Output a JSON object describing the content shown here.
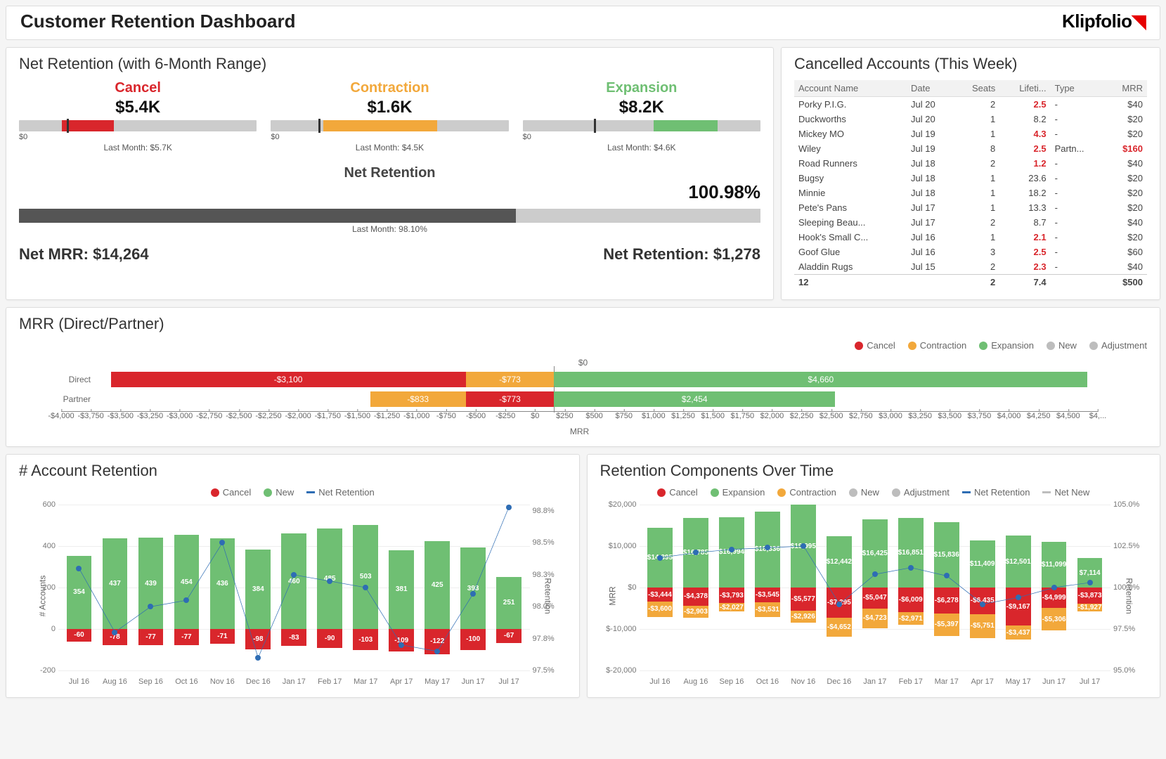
{
  "title": "Customer Retention Dashboard",
  "brand": "Klipfolio",
  "colors": {
    "cancel": "#d9262c",
    "contraction": "#f2a83b",
    "expansion": "#6fbf73",
    "gray": "#bdbdbd",
    "new": "#bdbdbd",
    "adjustment": "#bdbdbd",
    "line": "#2e6db4",
    "dark": "#555555",
    "zero_line": "#888888"
  },
  "net_retention": {
    "title": "Net Retention (with 6-Month Range)",
    "bullets": [
      {
        "label": "Cancel",
        "value": "$5.4K",
        "color": "#d9262c",
        "fill_pct": [
          18,
          40
        ],
        "marker_pct": 20,
        "last_month": "Last Month: $5.7K",
        "scale": [
          "$0",
          ""
        ]
      },
      {
        "label": "Contraction",
        "value": "$1.6K",
        "color": "#f2a83b",
        "fill_pct": [
          22,
          70
        ],
        "marker_pct": 20,
        "last_month": "Last Month: $4.5K",
        "scale": [
          "$0",
          ""
        ]
      },
      {
        "label": "Expansion",
        "value": "$8.2K",
        "color": "#6fbf73",
        "fill_pct": [
          55,
          82
        ],
        "marker_pct": 30,
        "last_month": "Last Month: $4.6K",
        "scale": [
          "$0",
          ""
        ]
      }
    ],
    "overall_label": "Net Retention",
    "overall_value": "100.98%",
    "overall_fill_pct": 67,
    "overall_last_month": "Last Month: 98.10%",
    "net_mrr": "Net MRR: $14,264",
    "net_ret": "Net Retention: $1,278"
  },
  "cancelled": {
    "title": "Cancelled Accounts (This Week)",
    "columns": [
      "Account Name",
      "Date",
      "Seats",
      "Lifeti...",
      "Type",
      "MRR"
    ],
    "rows": [
      {
        "name": "Porky P.I.G.",
        "date": "Jul 20",
        "seats": "2",
        "life": "2.5",
        "life_red": true,
        "type": "-",
        "mrr": "$40"
      },
      {
        "name": "Duckworths",
        "date": "Jul 20",
        "seats": "1",
        "life": "8.2",
        "life_red": false,
        "type": "-",
        "mrr": "$20"
      },
      {
        "name": "Mickey MO",
        "date": "Jul 19",
        "seats": "1",
        "life": "4.3",
        "life_red": true,
        "type": "-",
        "mrr": "$20"
      },
      {
        "name": "Wiley",
        "date": "Jul 19",
        "seats": "8",
        "life": "2.5",
        "life_red": true,
        "type": "Partn...",
        "mrr": "$160",
        "mrr_red": true
      },
      {
        "name": "Road Runners",
        "date": "Jul 18",
        "seats": "2",
        "life": "1.2",
        "life_red": true,
        "type": "-",
        "mrr": "$40"
      },
      {
        "name": "Bugsy",
        "date": "Jul 18",
        "seats": "1",
        "life": "23.6",
        "life_red": false,
        "type": "-",
        "mrr": "$20"
      },
      {
        "name": "Minnie",
        "date": "Jul 18",
        "seats": "1",
        "life": "18.2",
        "life_red": false,
        "type": "-",
        "mrr": "$20"
      },
      {
        "name": "Pete's Pans",
        "date": "Jul 17",
        "seats": "1",
        "life": "13.3",
        "life_red": false,
        "type": "-",
        "mrr": "$20"
      },
      {
        "name": "Sleeping Beau...",
        "date": "Jul 17",
        "seats": "2",
        "life": "8.7",
        "life_red": false,
        "type": "-",
        "mrr": "$40"
      },
      {
        "name": "Hook's Small C...",
        "date": "Jul 16",
        "seats": "1",
        "life": "2.1",
        "life_red": true,
        "type": "-",
        "mrr": "$20"
      },
      {
        "name": "Goof Glue",
        "date": "Jul 16",
        "seats": "3",
        "life": "2.5",
        "life_red": true,
        "type": "-",
        "mrr": "$60"
      },
      {
        "name": "Aladdin Rugs",
        "date": "Jul 15",
        "seats": "2",
        "life": "2.3",
        "life_red": true,
        "type": "-",
        "mrr": "$40"
      }
    ],
    "total": {
      "name": "12",
      "seats": "2",
      "life": "7.4",
      "mrr": "$500"
    }
  },
  "mrr_bar": {
    "title": "MRR (Direct/Partner)",
    "legend": [
      "Cancel",
      "Contraction",
      "Expansion",
      "New",
      "Adjustment"
    ],
    "xmin": -4000,
    "xmax": 4750,
    "zero_label": "$0",
    "ticks": [
      "-$4,000",
      "-$3,750",
      "-$3,500",
      "-$3,250",
      "-$3,000",
      "-$2,750",
      "-$2,500",
      "-$2,250",
      "-$2,000",
      "-$1,750",
      "-$1,500",
      "-$1,250",
      "-$1,000",
      "-$750",
      "-$500",
      "-$250",
      "$0",
      "$250",
      "$500",
      "$750",
      "$1,000",
      "$1,250",
      "$1,500",
      "$1,750",
      "$2,000",
      "$2,250",
      "$2,500",
      "$2,750",
      "$3,000",
      "$3,250",
      "$3,500",
      "$3,750",
      "$4,000",
      "$4,250",
      "$4,500",
      "$4,..."
    ],
    "tick_values": [
      -4000,
      -3750,
      -3500,
      -3250,
      -3000,
      -2750,
      -2500,
      -2250,
      -2000,
      -1750,
      -1500,
      -1250,
      -1000,
      -750,
      -500,
      -250,
      0,
      250,
      500,
      750,
      1000,
      1250,
      1500,
      1750,
      2000,
      2250,
      2500,
      2750,
      3000,
      3250,
      3500,
      3750,
      4000,
      4250,
      4500,
      4750
    ],
    "series": [
      {
        "label": "Direct",
        "segments": [
          {
            "from": -3873,
            "to": -773,
            "color": "#d9262c",
            "text": "-$3,100"
          },
          {
            "from": -773,
            "to": 0,
            "color": "#f2a83b",
            "text": "-$773"
          },
          {
            "from": 0,
            "to": 4660,
            "color": "#6fbf73",
            "text": "$4,660"
          }
        ]
      },
      {
        "label": "Partner",
        "segments": [
          {
            "from": -1606,
            "to": -773,
            "color": "#f2a83b",
            "text": "-$833"
          },
          {
            "from": -773,
            "to": 0,
            "color": "#d9262c",
            "text": "-$773"
          },
          {
            "from": 0,
            "to": 2454,
            "color": "#6fbf73",
            "text": "$2,454"
          }
        ]
      }
    ],
    "axis_title": "MRR"
  },
  "account_ret": {
    "title": "# Account Retention",
    "legend": [
      "Cancel",
      "New",
      "Net Retention"
    ],
    "y_left": {
      "min": -200,
      "max": 600,
      "step": 200,
      "title": "# Accounts"
    },
    "y_right": {
      "min": 97.5,
      "max": 98.8,
      "step": 0.25,
      "title": "Retention"
    },
    "months": [
      "Jul 16",
      "Aug 16",
      "Sep 16",
      "Oct 16",
      "Nov 16",
      "Dec 16",
      "Jan 17",
      "Feb 17",
      "Mar 17",
      "Apr 17",
      "May 17",
      "Jun 17",
      "Jul 17"
    ],
    "new": [
      354,
      437,
      439,
      454,
      436,
      384,
      460,
      485,
      503,
      381,
      425,
      393,
      251
    ],
    "cancel": [
      -60,
      -78,
      -77,
      -77,
      -71,
      -98,
      -83,
      -90,
      -103,
      -109,
      -122,
      -100,
      -67
    ],
    "retention": [
      98.3,
      97.8,
      98.0,
      98.05,
      98.5,
      97.6,
      98.25,
      98.2,
      98.15,
      97.7,
      97.65,
      98.1,
      98.78
    ]
  },
  "components": {
    "title": "Retention Components Over Time",
    "legend": [
      "Cancel",
      "Expansion",
      "Contraction",
      "New",
      "Adjustment",
      "Net Retention",
      "Net New"
    ],
    "y_left": {
      "min": -20000,
      "max": 20000,
      "step": 10000,
      "title": "MRR"
    },
    "y_right": {
      "min": 95.0,
      "max": 105.0,
      "step": 2.5,
      "title": "Retention"
    },
    "months": [
      "Jul 16",
      "Aug 16",
      "Sep 16",
      "Oct 16",
      "Nov 16",
      "Dec 16",
      "Jan 17",
      "Feb 17",
      "Mar 17",
      "Apr 17",
      "May 17",
      "Jun 17",
      "Jul 17"
    ],
    "expansion": [
      14395,
      16785,
      16994,
      18336,
      19995,
      12442,
      16425,
      16851,
      15836,
      11409,
      12501,
      11099,
      7114
    ],
    "cancel": [
      -3444,
      -4378,
      -3793,
      -3545,
      -5577,
      -7295,
      -5047,
      -6009,
      -6278,
      -6435,
      -9167,
      -4999,
      -3873
    ],
    "contraction": [
      -3600,
      -2903,
      -2027,
      -3531,
      -2926,
      -4652,
      -4723,
      -2971,
      -5397,
      -5751,
      -3437,
      -5306,
      -1927
    ],
    "retention": [
      101.8,
      102.1,
      102.3,
      102.4,
      102.5,
      99.0,
      100.8,
      101.2,
      100.7,
      99.0,
      99.4,
      100.0,
      100.3
    ]
  }
}
